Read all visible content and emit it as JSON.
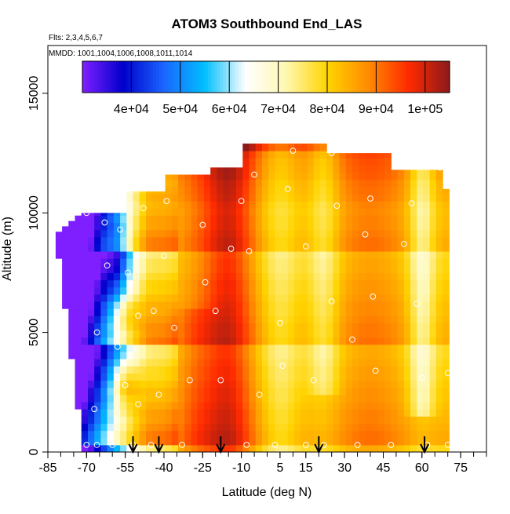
{
  "chart_data": {
    "type": "heatmap",
    "title": "ATOM3 Southbound End_LAS",
    "subtitle_flights": "Flts: 2,3,4,5,6,7",
    "subtitle_dates": "MMDD: 1001,1004,1006,1008,1011,1014",
    "xlabel": "Latitude (deg N)",
    "ylabel": "Altitude (m)",
    "xlim": [
      -85,
      85
    ],
    "ylim": [
      0,
      17000
    ],
    "x_ticks": [
      -85,
      -70,
      -55,
      -40,
      -25,
      -10,
      5,
      15,
      30,
      45,
      60,
      75
    ],
    "x_tick_labels": [
      "-85",
      "-70",
      "-55",
      "-40",
      "-25",
      "-10",
      "5",
      "15",
      "30",
      "45",
      "60",
      "75"
    ],
    "y_ticks": [
      0,
      5000,
      10000,
      15000
    ],
    "y_tick_labels": [
      "0",
      "5000",
      "10000",
      "15000"
    ],
    "colorbar": {
      "range": [
        30000,
        105000
      ],
      "ticks": [
        40000,
        50000,
        60000,
        70000,
        80000,
        90000,
        100000
      ],
      "tick_labels": [
        "4e+04",
        "5e+04",
        "6e+04",
        "7e+04",
        "8e+04",
        "9e+04",
        "1e+05"
      ],
      "colors": [
        "#7f1fff",
        "#0000cc",
        "#1a66ff",
        "#00bfff",
        "#ffffff",
        "#fff7b0",
        "#ffd400",
        "#ff8c00",
        "#ff2a00",
        "#8b1a1a"
      ]
    },
    "profile_arrows_lat": [
      -52,
      -42,
      -18,
      20,
      61
    ],
    "grid": false,
    "legend": "colorbar-top"
  }
}
